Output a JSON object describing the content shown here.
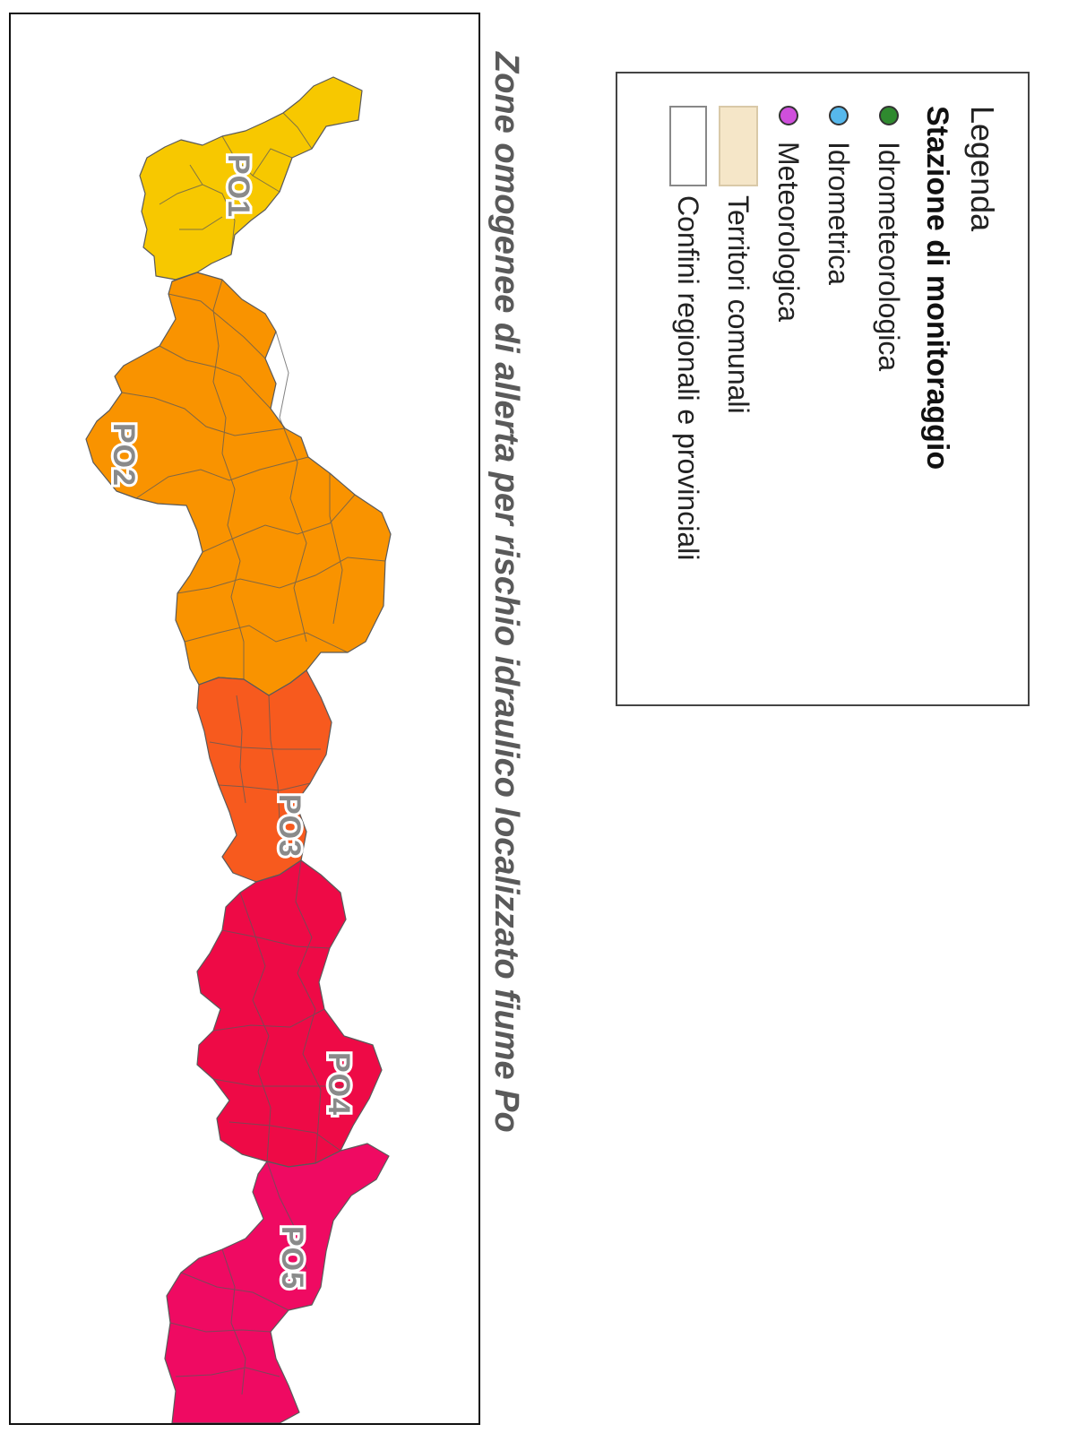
{
  "title": "Zone omogenee di allerta per rischio idraulico localizzato fiume Po",
  "legend": {
    "title": "Legenda",
    "subtitle": "Stazione di monitoraggio",
    "items": [
      {
        "label": "Idrometeorologica",
        "kind": "dot",
        "color": "#2f8a2f"
      },
      {
        "label": "Idrometrica",
        "kind": "dot",
        "color": "#56b8ec"
      },
      {
        "label": "Meteorologica",
        "kind": "dot",
        "color": "#cf4fdc"
      },
      {
        "label": "Territori comunali",
        "kind": "rect",
        "color": "#f5e6c8",
        "border": "#d9c9a8"
      },
      {
        "label": "Confini regionali e provinciali",
        "kind": "rect",
        "color": "#ffffff",
        "border": "#888888"
      }
    ]
  },
  "zones": [
    {
      "id": "PO1",
      "label": "PO1",
      "color": "#f7c800"
    },
    {
      "id": "PO2",
      "label": "PO2",
      "color": "#f99300"
    },
    {
      "id": "PO3",
      "label": "PO3",
      "color": "#f75a1e"
    },
    {
      "id": "PO4",
      "label": "PO4",
      "color": "#ee0a46"
    },
    {
      "id": "PO5",
      "label": "PO5",
      "color": "#ef0a62"
    }
  ],
  "colors": {
    "municipal_border": "#5a5a5a",
    "frame": "#111111"
  }
}
